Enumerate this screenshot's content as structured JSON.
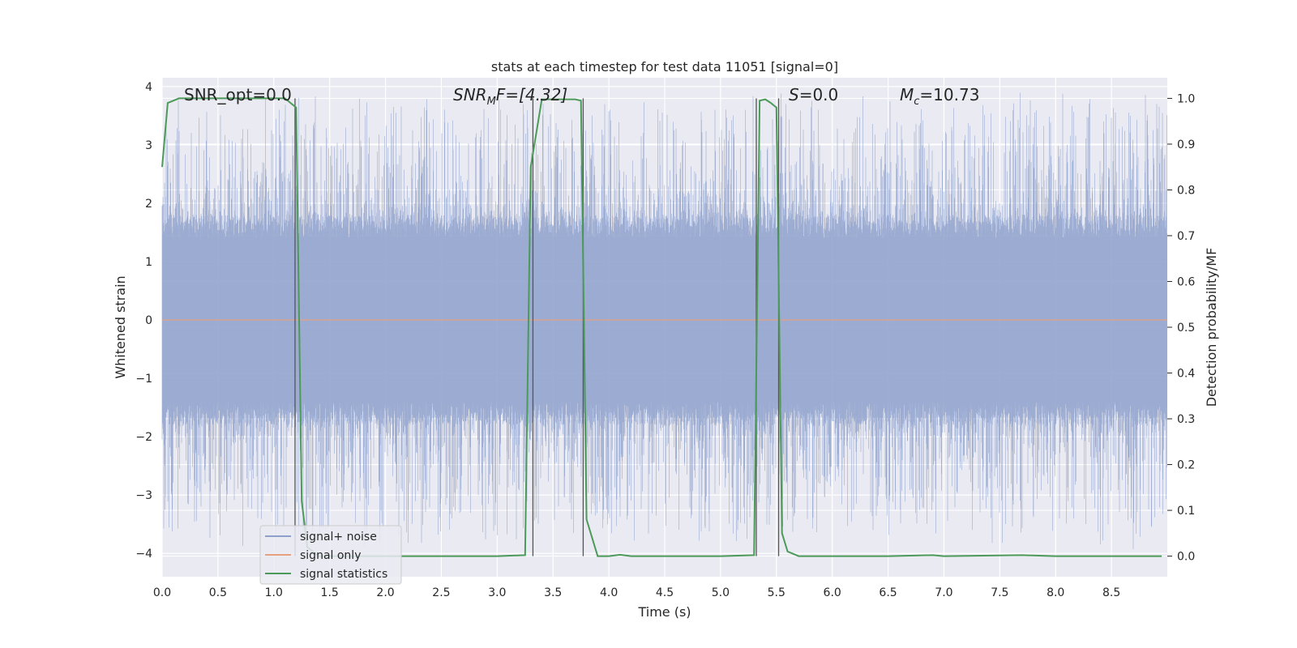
{
  "chart_data": {
    "type": "line",
    "title": "stats at each timestep for test data 11051 [signal=0]",
    "xlabel": "Time (s)",
    "ylabel": "Whitened strain",
    "y2label": "Detection probability/MF",
    "xlim": [
      0.0,
      9.0
    ],
    "ylim": [
      -4.4,
      4.15
    ],
    "y2lim": [
      -0.045,
      1.045
    ],
    "x_ticks": [
      "0.0",
      "0.5",
      "1.0",
      "1.5",
      "2.0",
      "2.5",
      "3.0",
      "3.5",
      "4.0",
      "4.5",
      "5.0",
      "5.5",
      "6.0",
      "6.5",
      "7.0",
      "7.5",
      "8.0",
      "8.5"
    ],
    "y_ticks": [
      "4",
      "3",
      "2",
      "1",
      "0",
      "−1",
      "−2",
      "−3",
      "−4"
    ],
    "y2_ticks": [
      "1.0",
      "0.9",
      "0.8",
      "0.7",
      "0.6",
      "0.5",
      "0.4",
      "0.3",
      "0.2",
      "0.1",
      "0.0"
    ],
    "annotations": {
      "snr_opt": "SNR_opt=0.0",
      "snr_mf_base": "SNR",
      "snr_mf_sub": "M",
      "snr_mf_rest": "F=[4.32]",
      "s_italic": "S",
      "s_rest": "=0.0",
      "mc_base": "M",
      "mc_sub": "c",
      "mc_rest": "=10.73"
    },
    "legend": {
      "placement": "lower left",
      "entries": [
        "signal+ noise",
        "signal only",
        "signal statistics"
      ]
    },
    "colors": {
      "noise": "#8da0cb",
      "signal": "#e5a07f",
      "stats": "#4c9a5a",
      "markers": "#555555",
      "background": "#eaeaf2",
      "grid": "#ffffff"
    },
    "series": [
      {
        "name": "signal+ noise",
        "description_range": "dense whitened noise roughly between -3.7 and 3.8",
        "envelope": {
          "typical_min": -1.6,
          "typical_max": 1.6,
          "peak_max": 3.8,
          "peak_min": -3.75
        }
      },
      {
        "name": "signal only",
        "x": [
          0.0,
          9.0
        ],
        "y": [
          0.0,
          0.0
        ]
      },
      {
        "name": "signal statistics",
        "axis": "right",
        "x": [
          0.0,
          0.05,
          0.1,
          0.15,
          0.5,
          1.0,
          1.1,
          1.15,
          1.2,
          1.25,
          1.3,
          1.4,
          3.0,
          3.25,
          3.3,
          3.4,
          3.7,
          3.75,
          3.8,
          3.9,
          4.0,
          4.1,
          4.2,
          5.0,
          5.3,
          5.35,
          5.4,
          5.45,
          5.5,
          5.55,
          5.6,
          5.7,
          6.5,
          6.9,
          7.0,
          7.7,
          8.0,
          8.95
        ],
        "y": [
          0.85,
          0.99,
          0.995,
          1.0,
          1.0,
          1.0,
          1.0,
          0.99,
          0.98,
          0.12,
          0.02,
          0.0,
          0.0,
          0.002,
          0.85,
          0.998,
          0.998,
          0.995,
          0.08,
          0.0,
          0.0,
          0.003,
          0.0,
          0.0,
          0.002,
          0.995,
          0.998,
          0.99,
          0.98,
          0.05,
          0.01,
          0.0,
          0.0,
          0.002,
          0.0,
          0.002,
          0.0,
          0.0
        ]
      },
      {
        "name": "detection markers",
        "x": [
          1.19,
          3.32,
          3.77,
          5.32,
          5.52
        ],
        "ymin": 0.0,
        "ymax": 1.0
      }
    ]
  }
}
